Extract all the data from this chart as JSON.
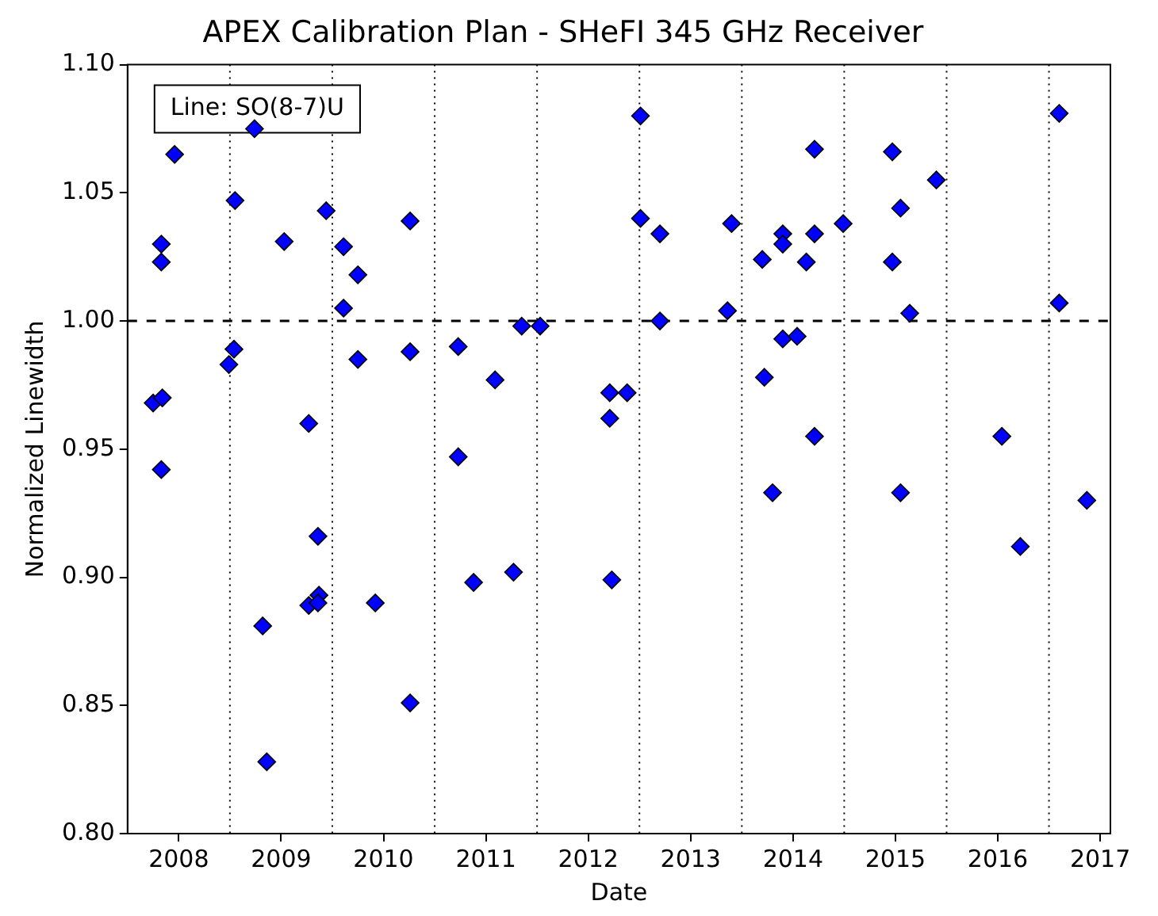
{
  "chart_data": {
    "type": "scatter",
    "title": "APEX Calibration Plan - SHeFI 345 GHz Receiver",
    "xlabel": "Date",
    "ylabel": "Normalized Linewidth",
    "annotations": [
      "Line: SO(8-7)U"
    ],
    "marker": "diamond",
    "legend": false,
    "grid": false,
    "xlim": [
      2007.5,
      2017.1
    ],
    "xticks": [
      2008,
      2009,
      2010,
      2011,
      2012,
      2013,
      2014,
      2015,
      2016,
      2017
    ],
    "ylim": [
      0.8,
      1.1
    ],
    "yticks": [
      {
        "value": 0.8,
        "label": "0.80"
      },
      {
        "value": 0.85,
        "label": "0.85"
      },
      {
        "value": 0.9,
        "label": "0.90"
      },
      {
        "value": 0.95,
        "label": "0.95"
      },
      {
        "value": 1.0,
        "label": "1.00"
      },
      {
        "value": 1.05,
        "label": "1.05"
      },
      {
        "value": 1.1,
        "label": "1.10"
      }
    ],
    "ref_lines": [
      {
        "axis": "y",
        "value": 1.0,
        "color": "#000000",
        "line_style": "dashed"
      },
      {
        "axis": "x",
        "value": 2008.5,
        "color": "#000000",
        "line_style": "dotted"
      },
      {
        "axis": "x",
        "value": 2009.5,
        "color": "#000000",
        "line_style": "dotted"
      },
      {
        "axis": "x",
        "value": 2010.5,
        "color": "#000000",
        "line_style": "dotted"
      },
      {
        "axis": "x",
        "value": 2011.5,
        "color": "#000000",
        "line_style": "dotted"
      },
      {
        "axis": "x",
        "value": 2012.5,
        "color": "#000000",
        "line_style": "dotted"
      },
      {
        "axis": "x",
        "value": 2013.5,
        "color": "#000000",
        "line_style": "dotted"
      },
      {
        "axis": "x",
        "value": 2014.5,
        "color": "#000000",
        "line_style": "dotted"
      },
      {
        "axis": "x",
        "value": 2015.5,
        "color": "#000000",
        "line_style": "dotted"
      },
      {
        "axis": "x",
        "value": 2016.5,
        "color": "#000000",
        "line_style": "dotted"
      }
    ],
    "series": [
      {
        "color": "#0000ff",
        "x": [
          2007.96,
          2007.83,
          2007.83,
          2007.75,
          2007.84,
          2007.83,
          2008.55,
          2008.54,
          2008.49,
          2008.74,
          2008.82,
          2008.86,
          2009.03,
          2009.27,
          2009.27,
          2009.36,
          2009.37,
          2009.36,
          2009.44,
          2009.61,
          2009.61,
          2009.75,
          2009.75,
          2009.92,
          2010.26,
          2010.26,
          2010.26,
          2010.73,
          2010.73,
          2010.88,
          2011.09,
          2011.27,
          2011.35,
          2011.53,
          2012.21,
          2012.38,
          2012.21,
          2012.23,
          2012.51,
          2012.51,
          2012.7,
          2012.7,
          2013.36,
          2013.4,
          2013.7,
          2013.72,
          2013.8,
          2013.9,
          2013.9,
          2013.9,
          2014.04,
          2014.13,
          2014.21,
          2014.21,
          2014.21,
          2014.49,
          2014.97,
          2014.97,
          2015.05,
          2015.05,
          2015.14,
          2015.4,
          2016.04,
          2016.22,
          2016.6,
          2016.6,
          2016.87
        ],
        "values": [
          1.065,
          1.03,
          1.023,
          0.968,
          0.97,
          0.942,
          1.047,
          0.989,
          0.983,
          1.075,
          0.881,
          0.828,
          1.031,
          0.96,
          0.889,
          0.916,
          0.893,
          0.89,
          1.043,
          1.029,
          1.005,
          1.018,
          0.985,
          0.89,
          1.039,
          0.988,
          0.851,
          0.99,
          0.947,
          0.898,
          0.977,
          0.902,
          0.998,
          0.998,
          0.972,
          0.972,
          0.962,
          0.899,
          1.08,
          1.04,
          1.034,
          1.0,
          1.004,
          1.038,
          1.024,
          0.978,
          0.933,
          1.034,
          1.03,
          0.993,
          0.994,
          1.023,
          1.067,
          1.034,
          0.955,
          1.038,
          1.066,
          1.023,
          1.044,
          0.933,
          1.003,
          1.055,
          0.955,
          0.912,
          1.081,
          1.007,
          0.93
        ]
      }
    ]
  }
}
